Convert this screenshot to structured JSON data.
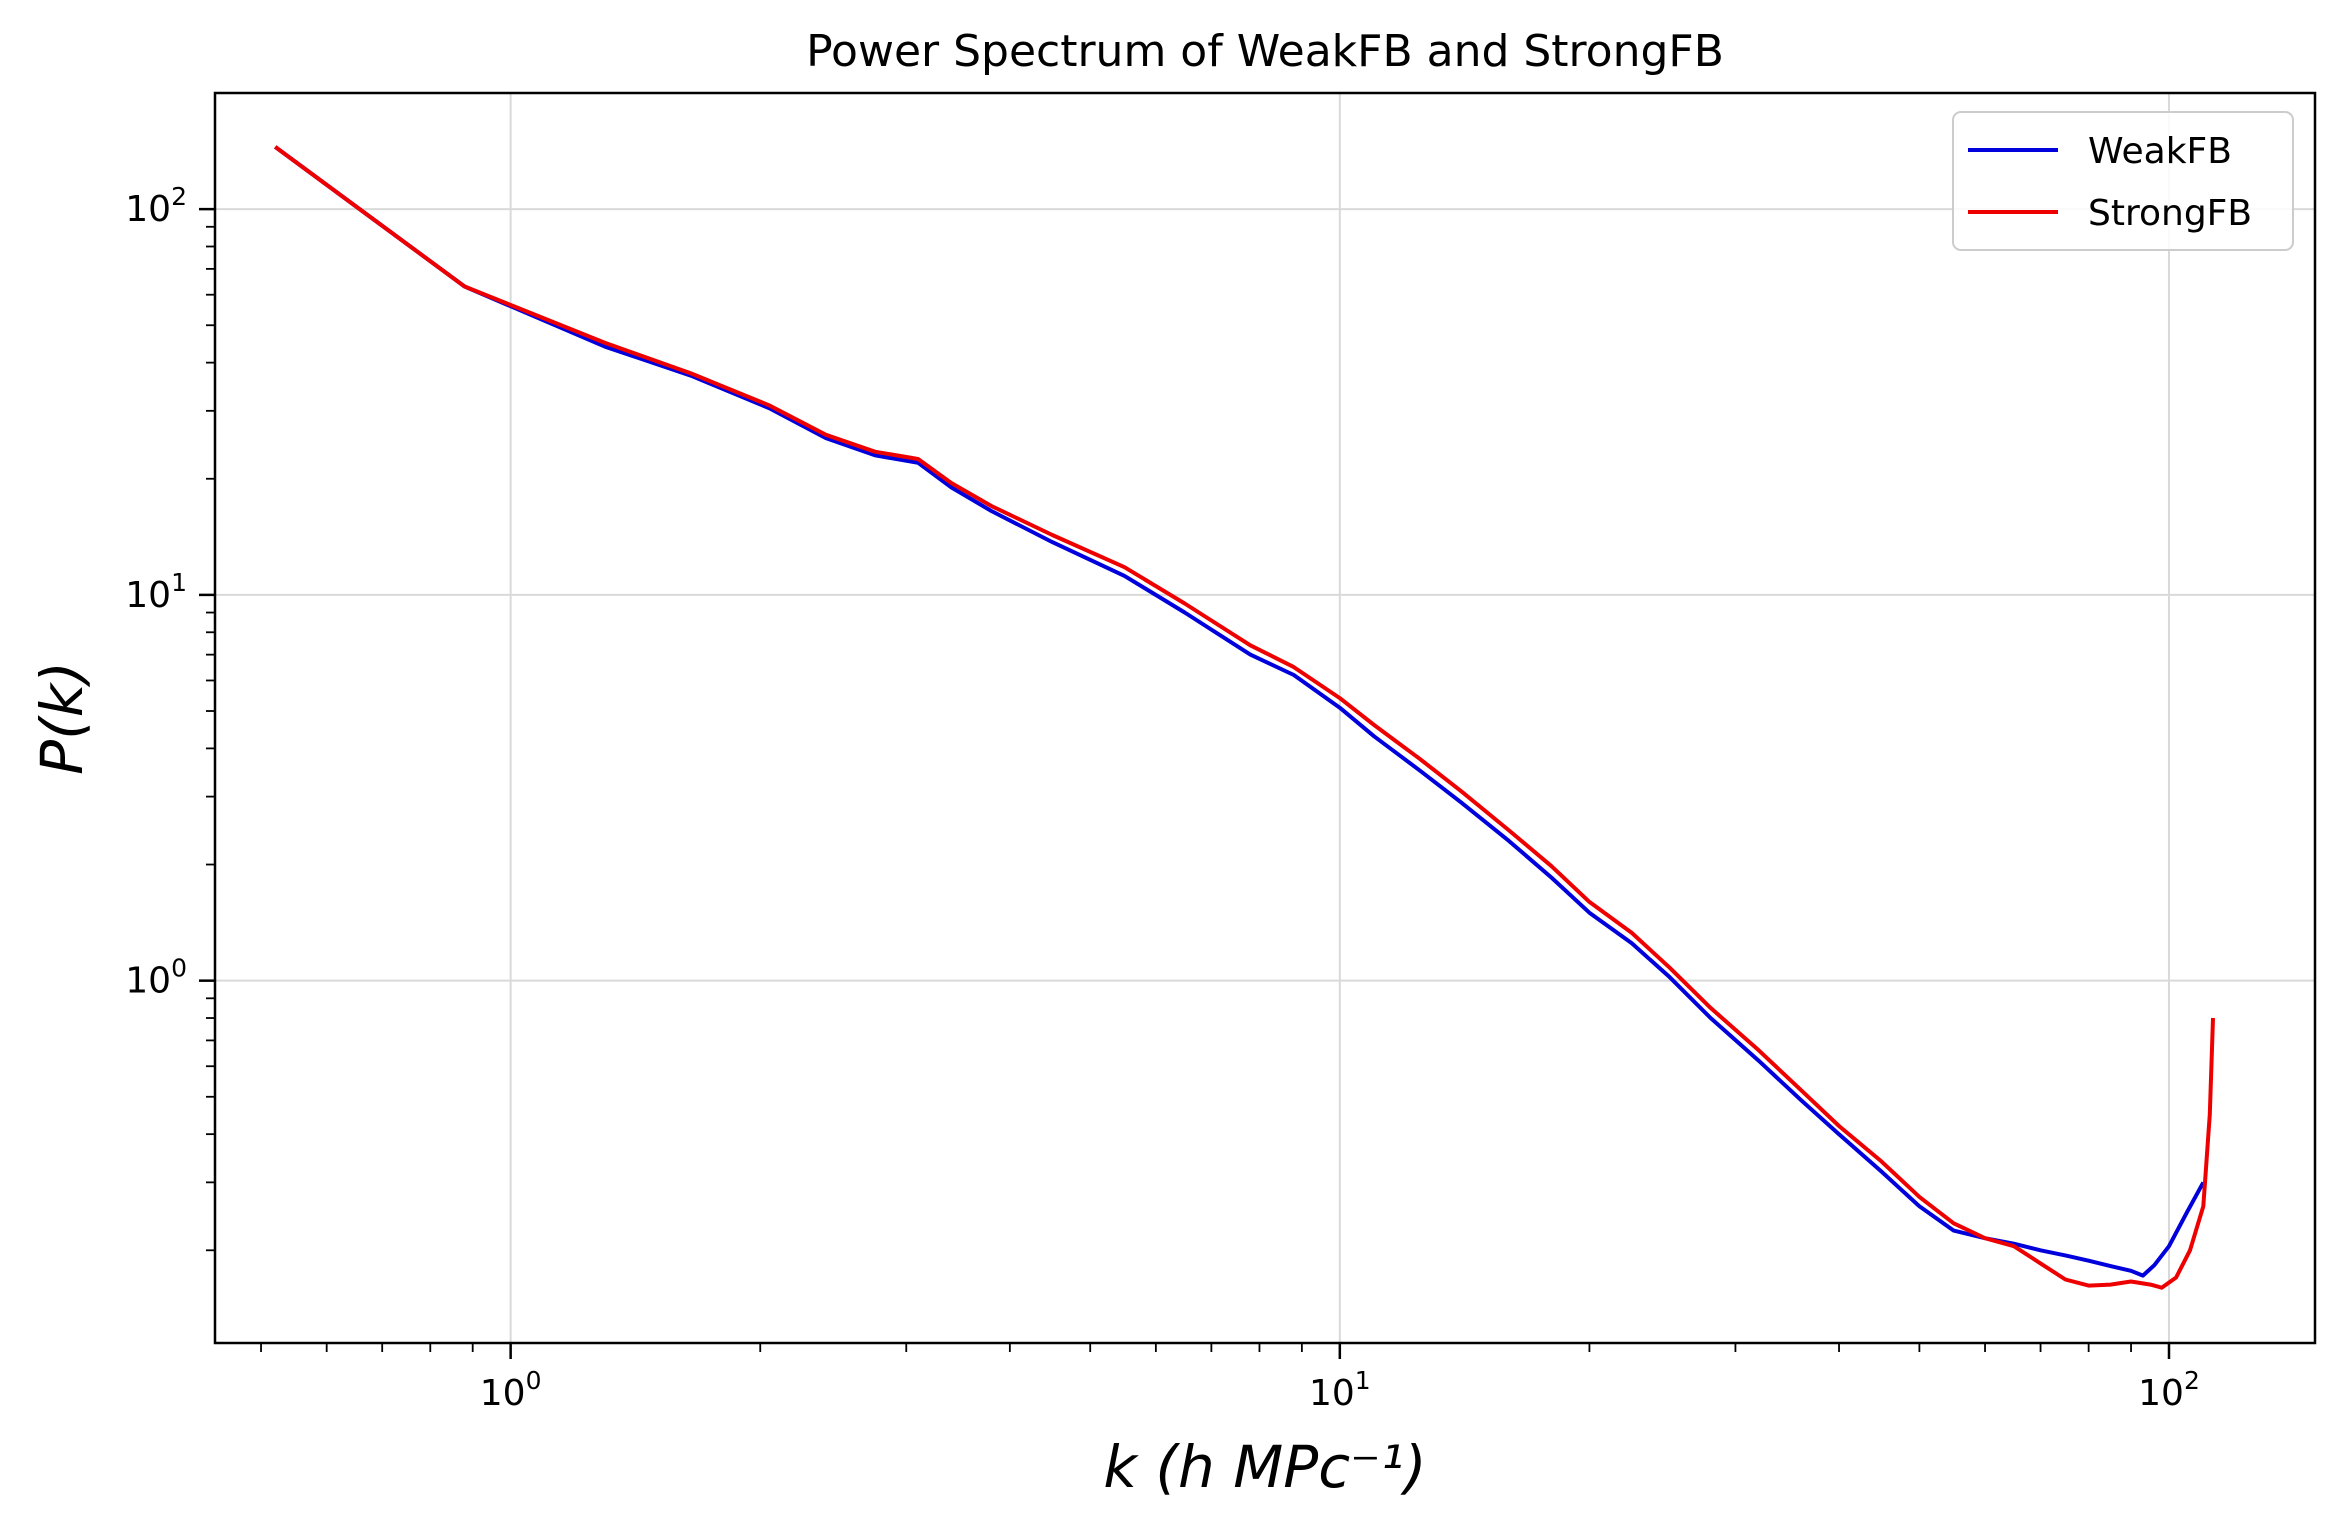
{
  "chart_data": {
    "type": "line",
    "title": "Power Spectrum of WeakFB and StrongFB",
    "xlabel": "k (h MPc⁻¹)",
    "ylabel": "P(k)",
    "xscale": "log",
    "yscale": "log",
    "xlim": [
      0.44,
      150
    ],
    "ylim": [
      0.115,
      200
    ],
    "grid": true,
    "legend_position": "top-right",
    "x_ticks": [
      {
        "value": 1,
        "base": "10",
        "exp": "0"
      },
      {
        "value": 10,
        "base": "10",
        "exp": "1"
      },
      {
        "value": 100,
        "base": "10",
        "exp": "2"
      }
    ],
    "y_ticks": [
      {
        "value": 1,
        "base": "10",
        "exp": "0"
      },
      {
        "value": 10,
        "base": "10",
        "exp": "1"
      },
      {
        "value": 100,
        "base": "10",
        "exp": "2"
      }
    ],
    "series": [
      {
        "name": "WeakFB",
        "color": "#0000dd",
        "x": [
          0.52,
          0.88,
          1.3,
          1.65,
          2.05,
          2.4,
          2.75,
          3.1,
          3.4,
          3.8,
          4.5,
          5.5,
          6.5,
          7.8,
          8.8,
          10,
          11,
          12.5,
          14,
          16,
          18,
          20,
          22.5,
          25,
          28,
          32,
          36,
          40,
          45,
          50,
          55,
          60,
          65,
          70,
          75,
          80,
          85,
          90,
          93,
          96,
          100,
          105,
          110
        ],
        "y": [
          145,
          63,
          44,
          37,
          30.5,
          25.5,
          23,
          22,
          19,
          16.5,
          13.7,
          11.2,
          9,
          7,
          6.2,
          5.1,
          4.3,
          3.5,
          2.9,
          2.3,
          1.85,
          1.5,
          1.25,
          1.02,
          0.8,
          0.62,
          0.49,
          0.4,
          0.32,
          0.26,
          0.225,
          0.215,
          0.208,
          0.2,
          0.194,
          0.188,
          0.182,
          0.177,
          0.172,
          0.183,
          0.205,
          0.25,
          0.3
        ]
      },
      {
        "name": "StrongFB",
        "color": "#ee0000",
        "x": [
          0.52,
          0.88,
          1.3,
          1.65,
          2.05,
          2.4,
          2.75,
          3.1,
          3.4,
          3.8,
          4.5,
          5.5,
          6.5,
          7.8,
          8.8,
          10,
          11,
          12.5,
          14,
          16,
          18,
          20,
          22.5,
          25,
          28,
          32,
          36,
          40,
          45,
          50,
          55,
          60,
          65,
          70,
          75,
          80,
          85,
          90,
          95,
          98,
          102,
          106,
          110,
          112,
          113
        ],
        "y": [
          145,
          63,
          45,
          37.5,
          31,
          26,
          23.5,
          22.5,
          19.5,
          17,
          14.3,
          11.8,
          9.5,
          7.4,
          6.5,
          5.4,
          4.6,
          3.75,
          3.1,
          2.45,
          1.98,
          1.6,
          1.33,
          1.08,
          0.85,
          0.66,
          0.52,
          0.42,
          0.34,
          0.275,
          0.235,
          0.215,
          0.205,
          0.185,
          0.168,
          0.162,
          0.163,
          0.166,
          0.163,
          0.16,
          0.17,
          0.2,
          0.26,
          0.45,
          0.8
        ]
      }
    ]
  }
}
